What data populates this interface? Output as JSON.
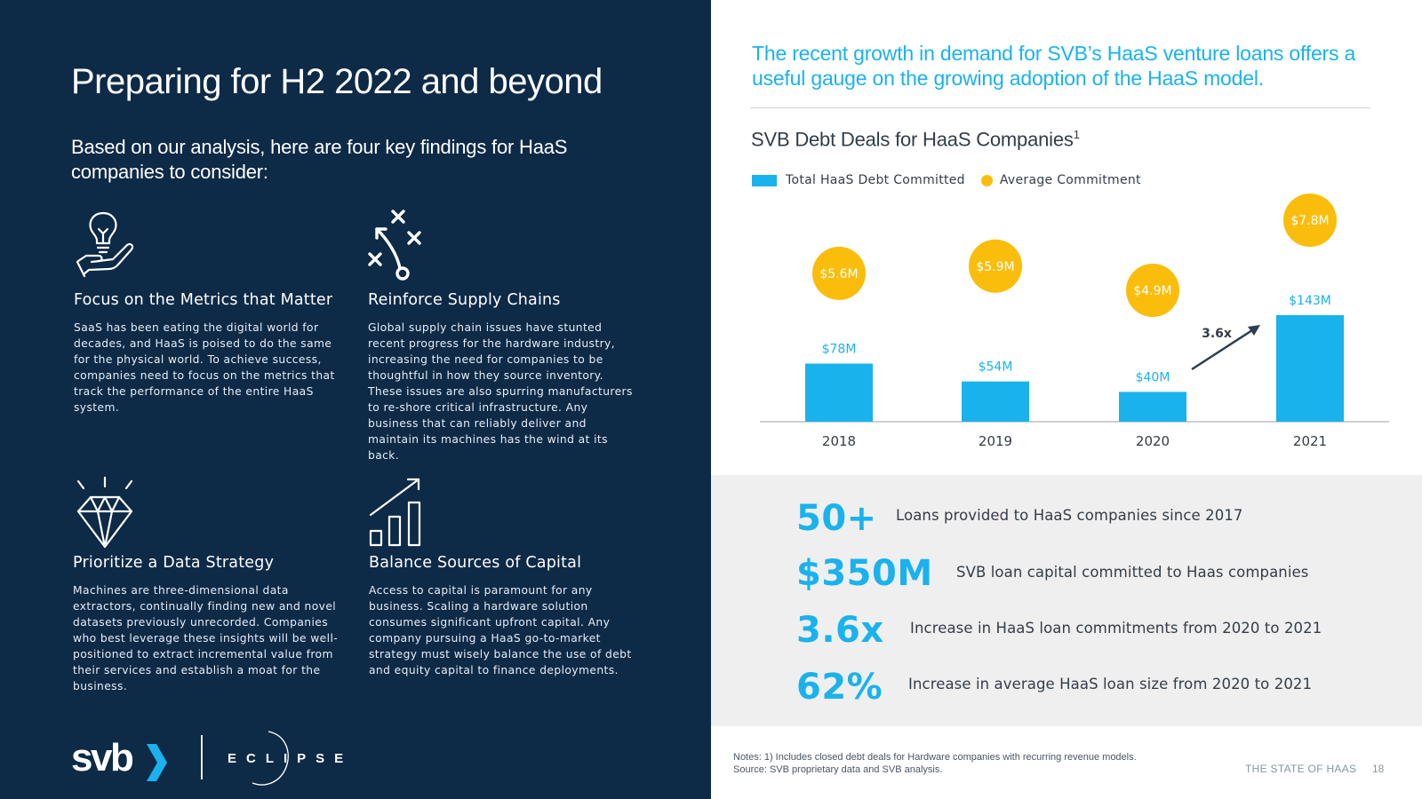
{
  "left": {
    "title": "Preparing for H2 2022 and beyond",
    "subtitle": "Based on our analysis, here are four key findings for HaaS companies to consider:",
    "cards": [
      {
        "icon": "lightbulb-hand-icon",
        "heading": "Focus on the Metrics that Matter",
        "body": "SaaS has been eating the digital world for decades, and HaaS is poised to do the same for the physical world. To achieve success, companies need to focus on the metrics that track the performance of the entire HaaS system."
      },
      {
        "icon": "strategy-play-icon",
        "heading": "Reinforce Supply Chains",
        "body": "Global supply chain issues have stunted recent progress for the hardware industry, increasing the need for companies to be thoughtful in how they source inventory. These issues are also spurring manufacturers to re-shore critical infrastructure. Any business that can reliably deliver and maintain its machines has the wind at its back."
      },
      {
        "icon": "diamond-icon",
        "heading": "Prioritize a Data Strategy",
        "body": "Machines are three-dimensional data extractors, continually finding new and novel datasets previously unrecorded. Companies who best leverage these insights will be well-positioned to extract incremental value from their services and establish a moat for the business."
      },
      {
        "icon": "growth-chart-icon",
        "heading": "Balance Sources of Capital",
        "body": "Access to capital is paramount for any business. Scaling a hardware solution consumes significant upfront capital. Any company pursuing a HaaS go-to-market strategy must wisely balance the use of debt and equity capital to finance deployments."
      }
    ],
    "logos": {
      "svb": "svb",
      "eclipse": "ECLIPSE"
    }
  },
  "right": {
    "headline": "The recent growth in demand for SVB’s HaaS venture loans offers a useful gauge on the growing adoption of the HaaS model.",
    "stats": [
      {
        "value": "50+",
        "label": "Loans provided to HaaS companies since 2017"
      },
      {
        "value": "$350M",
        "label": "SVB loan capital committed to Haas companies"
      },
      {
        "value": "3.6x",
        "label": "Increase in HaaS loan commitments from 2020 to 2021"
      },
      {
        "value": "62%",
        "label": "Increase in average HaaS loan size from 2020 to 2021"
      }
    ],
    "notes": [
      "Notes: 1) Includes closed debt deals for Hardware companies with recurring revenue models.",
      "Source: SVB proprietary data and SVB analysis."
    ],
    "footer": {
      "name": "THE STATE OF HAAS",
      "page": "18"
    }
  },
  "colors": {
    "navy": "#0d2a47",
    "accent_blue": "#1ab2ed",
    "accent_yellow": "#fbbd0c",
    "arrow": "#2d3e50"
  },
  "chart_data": {
    "type": "bar",
    "title": "SVB Debt Deals for HaaS Companies",
    "title_sup": "1",
    "categories": [
      "2018",
      "2019",
      "2020",
      "2021"
    ],
    "series": [
      {
        "name": "Total HaaS Debt Committed",
        "values": [
          78,
          54,
          40,
          143
        ],
        "labels": [
          "$78M",
          "$54M",
          "$40M",
          "$143M"
        ]
      },
      {
        "name": "Average Commitment",
        "values": [
          5.6,
          5.9,
          4.9,
          7.8
        ],
        "labels": [
          "$5.6M",
          "$5.9M",
          "$4.9M",
          "$7.8M"
        ]
      }
    ],
    "unit": "$M",
    "ylim": [
      0,
      143
    ],
    "annotation": {
      "text": "3.6x",
      "from": "2020",
      "to": "2021"
    },
    "legend": "top-left",
    "grid": false
  }
}
